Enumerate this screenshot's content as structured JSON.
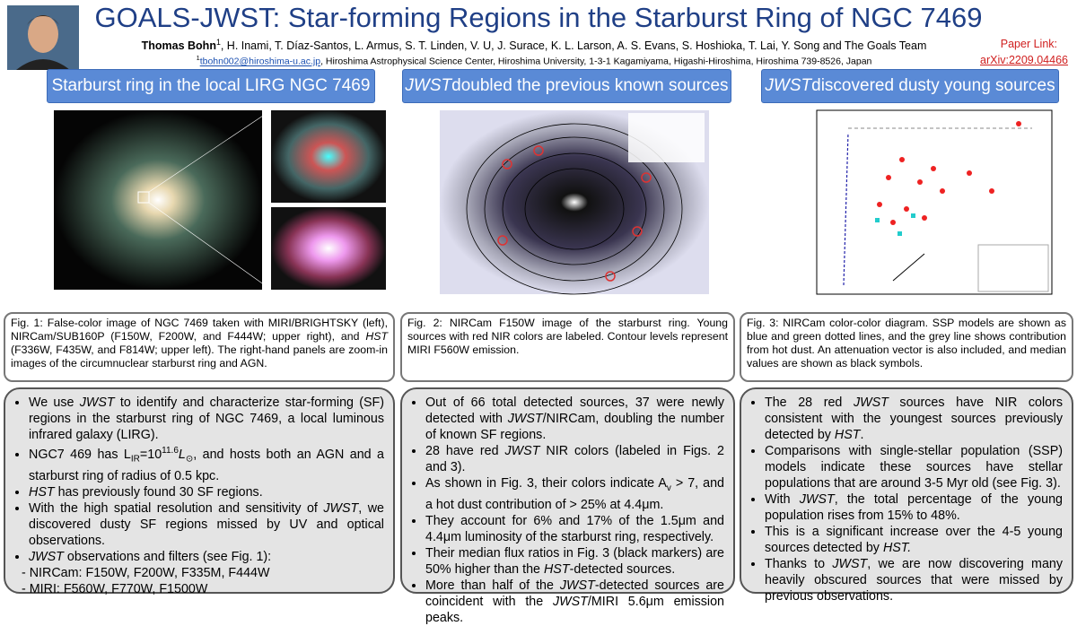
{
  "header": {
    "title": "GOALS-JWST: Star-forming Regions in the Starburst Ring of NGC 7469",
    "authors": [
      {
        "text": "Thomas Bohn",
        "style": "bold"
      },
      {
        "text": "1",
        "style": "sup"
      },
      ", H. Inami, T. Díaz-Santos, L. Armus, S. T. Linden, V. U, J. Surace, K. L. Larson, A. S. Evans, S. Hoshioka, T. Lai, Y. Song and The Goals Team"
    ],
    "affiliation": [
      {
        "text": "1",
        "style": "sup"
      },
      {
        "text": "tbohn002@hiroshima-u.ac.jp",
        "style": "link"
      },
      ", Hiroshima Astrophysical Science Center, Hiroshima University, 1-3-1 Kagamiyama, Higashi-Hiroshima, Hiroshima 739-8526, Japan"
    ],
    "paper_link_label": "Paper Link:",
    "paper_link": "arXiv:2209.04466"
  },
  "columns": [
    {
      "heading": [
        "Starburst ring in the local LIRG NGC 7469"
      ],
      "caption": [
        "Fig. 1: False-color image of NGC 7469 taken with MIRI/BRIGHTSKY (left), NIRCam/SUB160P (F150W, F200W, and F444W; upper right), and ",
        {
          "text": "HST",
          "style": "italic"
        },
        " (F336W, F435W, and F814W; upper left). The right-hand panels are zoom-in images of the circumnuclear starburst ring and AGN."
      ],
      "bullets": [
        [
          "We use ",
          {
            "text": "JWST",
            "style": "italic"
          },
          " to identify and characterize star-forming (SF) regions in the starburst ring of NGC 7469, a local luminous infrared galaxy (LIRG)."
        ],
        [
          "NGC7 469 has L",
          {
            "text": "IR",
            "style": "sub"
          },
          "=10",
          {
            "text": "11.6",
            "style": "sup"
          },
          {
            "text": "L",
            "style": "italic"
          },
          {
            "text": "⊙",
            "style": "sub"
          },
          ", and hosts both an AGN and a starburst ring of radius of 0.5 kpc."
        ],
        [
          {
            "text": "HST",
            "style": "italic"
          },
          " has previously found 30 SF regions."
        ],
        [
          "With the high spatial resolution and sensitivity of ",
          {
            "text": "JWST",
            "style": "italic"
          },
          ", we discovered dusty SF regions missed by UV and optical observations."
        ],
        [
          {
            "text": "JWST",
            "style": "italic"
          },
          " observations and filters (see Fig. 1):"
        ]
      ],
      "sublist": [
        "- NIRCam: F150W, F200W, F335M, F444W",
        "- MIRI: F560W, F770W, F1500W"
      ]
    },
    {
      "heading": [
        {
          "text": "JWST",
          "style": "italic"
        },
        " doubled the previous known sources"
      ],
      "caption": [
        "Fig. 2: NIRCam F150W image of the starburst ring. Young sources with red NIR colors are labeled. Contour levels represent MIRI F560W emission."
      ],
      "bullets": [
        [
          "Out of 66 total detected sources, 37 were newly detected with ",
          {
            "text": "JWST",
            "style": "italic"
          },
          "/NIRCam, doubling the number of known SF regions."
        ],
        [
          "28 have red ",
          {
            "text": "JWST",
            "style": "italic"
          },
          " NIR colors (labeled in Figs. 2 and 3)."
        ],
        [
          "As shown in Fig. 3, their colors indicate A",
          {
            "text": "v",
            "style": "sub"
          },
          " > 7, and a hot dust contribution of > 25% at 4.4μm."
        ],
        [
          "They account for 6% and 17% of the 1.5μm and 4.4μm luminosity of the starburst ring, respectively."
        ],
        [
          "Their median flux ratios in Fig. 3 (black markers) are 50% higher than the ",
          {
            "text": "HST",
            "style": "italic"
          },
          "-detected sources."
        ],
        [
          "More than half of the ",
          {
            "text": "JWST",
            "style": "italic"
          },
          "-detected sources are coincident with the ",
          {
            "text": "JWST",
            "style": "italic"
          },
          "/MIRI 5.6μm emission peaks."
        ]
      ]
    },
    {
      "heading": [
        {
          "text": "JWST",
          "style": "italic"
        },
        " discovered dusty young sources"
      ],
      "caption": [
        "Fig. 3: NIRCam color-color diagram. SSP models are shown as blue and green dotted lines, and the grey line shows contribution from hot dust. An attenuation vector is also included, and median values are shown as black symbols."
      ],
      "bullets": [
        [
          "The 28 red ",
          {
            "text": "JWST",
            "style": "italic"
          },
          " sources have NIR colors consistent with the youngest sources previously detected by ",
          {
            "text": "HST",
            "style": "italic"
          },
          "."
        ],
        [
          "Comparisons with single-stellar population (SSP) models indicate these sources have stellar populations that are around 3-5 Myr old (see Fig. 3)."
        ],
        [
          "With ",
          {
            "text": "JWST",
            "style": "italic"
          },
          ", the total percentage of the young population rises from 15% to 48%."
        ],
        [
          "This is a significant increase over the 4-5 young sources detected by ",
          {
            "text": "HST.",
            "style": "italic"
          }
        ],
        [
          "Thanks to ",
          {
            "text": "JWST",
            "style": "italic"
          },
          ", we are now discovering many heavily obscured sources that were missed by previous observations."
        ]
      ]
    }
  ]
}
